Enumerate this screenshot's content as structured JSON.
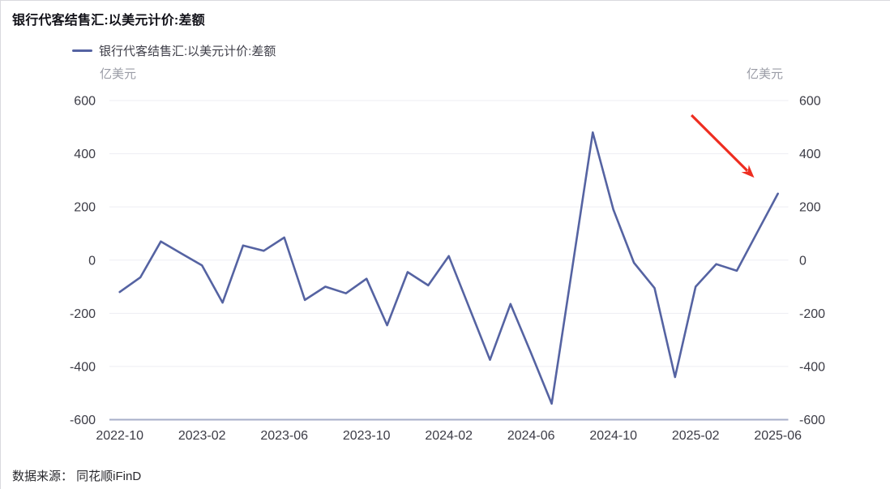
{
  "header": {
    "title": "银行代客结售汇:以美元计价:差额"
  },
  "legend": {
    "label": "银行代客结售汇:以美元计价:差额"
  },
  "axis_units": {
    "left": "亿美元",
    "right": "亿美元"
  },
  "footer": {
    "source": "数据来源： 同花顺iFinD"
  },
  "chart_data": {
    "type": "line",
    "title": "银行代客结售汇:以美元计价:差额",
    "series": [
      {
        "name": "银行代客结售汇:以美元计价:差额",
        "values": [
          -120,
          -65,
          70,
          25,
          -20,
          -160,
          55,
          35,
          85,
          -150,
          -100,
          -125,
          -70,
          -245,
          -45,
          -95,
          15,
          -180,
          -375,
          -165,
          -350,
          -540,
          -30,
          480,
          190,
          -10,
          -105,
          -440,
          -100,
          -15,
          -40,
          105,
          250
        ]
      }
    ],
    "x": [
      "2022-10",
      "2022-11",
      "2022-12",
      "2023-01",
      "2023-02",
      "2023-03",
      "2023-04",
      "2023-05",
      "2023-06",
      "2023-07",
      "2023-08",
      "2023-09",
      "2023-10",
      "2023-11",
      "2023-12",
      "2024-01",
      "2024-02",
      "2024-03",
      "2024-04",
      "2024-05",
      "2024-06",
      "2024-07",
      "2024-08",
      "2024-09",
      "2024-10",
      "2024-11",
      "2024-12",
      "2025-01",
      "2025-02",
      "2025-03",
      "2025-04",
      "2025-05",
      "2025-06"
    ],
    "x_tick_labels": [
      "2022-10",
      "2023-02",
      "2023-06",
      "2023-10",
      "2024-02",
      "2024-06",
      "2024-10",
      "2025-02",
      "2025-06"
    ],
    "x_tick_every": 4,
    "y_ticks": [
      600,
      400,
      200,
      0,
      -200,
      -400,
      -600
    ],
    "ylim": [
      -600,
      600
    ],
    "ylabel": "亿美元",
    "xlabel": "",
    "grid": true,
    "legend_position": "top-left",
    "line_color": "#5563a2",
    "grid_color": "#ededf3",
    "axis_color": "#a7aec8",
    "annotation": {
      "type": "arrow",
      "color": "#ee2d20",
      "from_index": 27.8,
      "from_value": 545,
      "to_index": 30.85,
      "to_value": 310
    }
  }
}
